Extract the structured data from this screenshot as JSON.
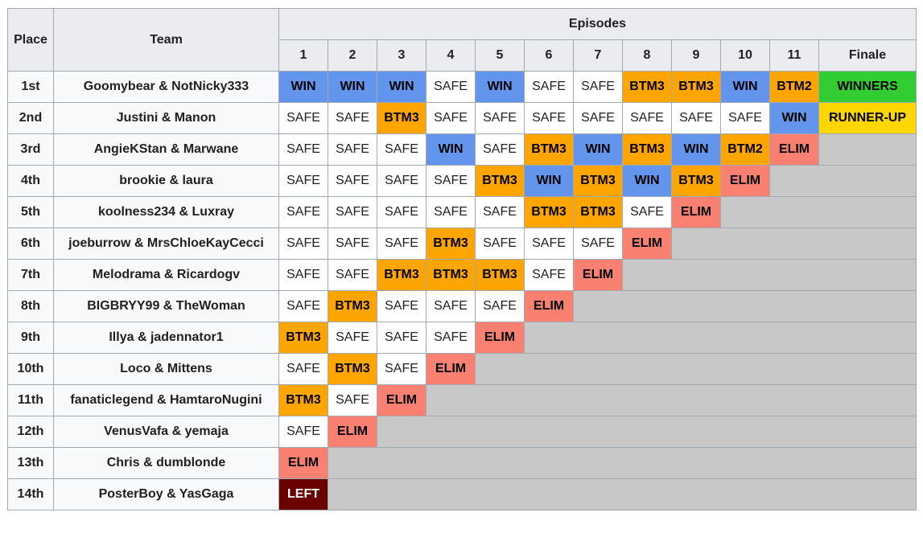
{
  "header": {
    "place": "Place",
    "team": "Team",
    "episodes": "Episodes",
    "columns": [
      "1",
      "2",
      "3",
      "4",
      "5",
      "6",
      "7",
      "8",
      "9",
      "10",
      "11",
      "Finale"
    ]
  },
  "rows": [
    {
      "place": "1st",
      "team": "Goomybear & NotNicky333",
      "results": [
        "WIN",
        "WIN",
        "WIN",
        "SAFE",
        "WIN",
        "SAFE",
        "SAFE",
        "BTM3",
        "BTM3",
        "WIN",
        "BTM2",
        "WINNERS"
      ]
    },
    {
      "place": "2nd",
      "team": "Justini & Manon",
      "results": [
        "SAFE",
        "SAFE",
        "BTM3",
        "SAFE",
        "SAFE",
        "SAFE",
        "SAFE",
        "SAFE",
        "SAFE",
        "SAFE",
        "WIN",
        "RUNNER-UP"
      ]
    },
    {
      "place": "3rd",
      "team": "AngieKStan & Marwane",
      "results": [
        "SAFE",
        "SAFE",
        "SAFE",
        "WIN",
        "SAFE",
        "BTM3",
        "WIN",
        "BTM3",
        "WIN",
        "BTM2",
        "ELIM"
      ]
    },
    {
      "place": "4th",
      "team": "brookie & laura",
      "results": [
        "SAFE",
        "SAFE",
        "SAFE",
        "SAFE",
        "BTM3",
        "WIN",
        "BTM3",
        "WIN",
        "BTM3",
        "ELIM"
      ]
    },
    {
      "place": "5th",
      "team": "koolness234 & Luxray",
      "results": [
        "SAFE",
        "SAFE",
        "SAFE",
        "SAFE",
        "SAFE",
        "BTM3",
        "BTM3",
        "SAFE",
        "ELIM"
      ]
    },
    {
      "place": "6th",
      "team": "joeburrow & MrsChloeKayCecci",
      "results": [
        "SAFE",
        "SAFE",
        "SAFE",
        "BTM3",
        "SAFE",
        "SAFE",
        "SAFE",
        "ELIM"
      ]
    },
    {
      "place": "7th",
      "team": "Melodrama & Ricardogv",
      "results": [
        "SAFE",
        "SAFE",
        "BTM3",
        "BTM3",
        "BTM3",
        "SAFE",
        "ELIM"
      ]
    },
    {
      "place": "8th",
      "team": "BIGBRYY99 & TheWoman",
      "results": [
        "SAFE",
        "BTM3",
        "SAFE",
        "SAFE",
        "SAFE",
        "ELIM"
      ]
    },
    {
      "place": "9th",
      "team": "Illya & jadennator1",
      "results": [
        "BTM3",
        "SAFE",
        "SAFE",
        "SAFE",
        "ELIM"
      ]
    },
    {
      "place": "10th",
      "team": "Loco & Mittens",
      "results": [
        "SAFE",
        "BTM3",
        "SAFE",
        "ELIM"
      ]
    },
    {
      "place": "11th",
      "team": "fanaticlegend & HamtaroNugini",
      "results": [
        "BTM3",
        "SAFE",
        "ELIM"
      ]
    },
    {
      "place": "12th",
      "team": "VenusVafa & yemaja",
      "results": [
        "SAFE",
        "ELIM"
      ]
    },
    {
      "place": "13th",
      "team": "Chris & dumblonde",
      "results": [
        "ELIM"
      ]
    },
    {
      "place": "14th",
      "team": "PosterBoy & YasGaga",
      "results": [
        "LEFT"
      ]
    }
  ],
  "result_styles": {
    "WIN": {
      "bg": "#6495ed",
      "color": "#000",
      "bold": true
    },
    "SAFE": {
      "bg": "#ffffff",
      "color": "#202122",
      "bold": false
    },
    "BTM3": {
      "bg": "#ffa500",
      "color": "#000",
      "bold": true
    },
    "BTM2": {
      "bg": "#ffa500",
      "color": "#000",
      "bold": true
    },
    "ELIM": {
      "bg": "#fa8072",
      "color": "#000",
      "bold": true
    },
    "LEFT": {
      "bg": "#6b0000",
      "color": "#fff",
      "bold": true
    },
    "WINNERS": {
      "bg": "#32cd32",
      "color": "#000",
      "bold": true
    },
    "RUNNER-UP": {
      "bg": "#ffd700",
      "color": "#000",
      "bold": true
    }
  }
}
